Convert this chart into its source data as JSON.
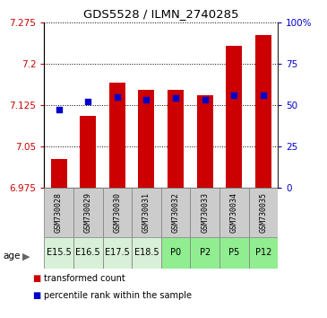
{
  "title": "GDS5528 / ILMN_2740285",
  "samples": [
    "GSM730028",
    "GSM730029",
    "GSM730030",
    "GSM730031",
    "GSM730032",
    "GSM730033",
    "GSM730034",
    "GSM730035"
  ],
  "ages": [
    "E15.5",
    "E16.5",
    "E17.5",
    "E18.5",
    "P0",
    "P2",
    "P5",
    "P12"
  ],
  "age_bg_colors": [
    "#d8f0d8",
    "#d8f0d8",
    "#d8f0d8",
    "#d8f0d8",
    "#90ee90",
    "#90ee90",
    "#90ee90",
    "#90ee90"
  ],
  "sample_bg_color": "#cccccc",
  "red_values": [
    7.027,
    7.105,
    7.165,
    7.152,
    7.152,
    7.142,
    7.232,
    7.252
  ],
  "blue_values": [
    47,
    52,
    55,
    53,
    54,
    53,
    56,
    56
  ],
  "ylim_left": [
    6.975,
    7.275
  ],
  "ylim_right": [
    0,
    100
  ],
  "yticks_left": [
    6.975,
    7.05,
    7.125,
    7.2,
    7.275
  ],
  "ytick_labels_left": [
    "6.975",
    "7.05",
    "7.125",
    "7.2",
    "7.275"
  ],
  "yticks_right": [
    0,
    25,
    50,
    75,
    100
  ],
  "ytick_labels_right": [
    "0",
    "25",
    "50",
    "75",
    "100%"
  ],
  "bar_color": "#cc0000",
  "dot_color": "#0000cc",
  "bar_width": 0.55,
  "left_axis_color": "#cc0000",
  "right_axis_color": "#0000cc",
  "age_label": "age",
  "legend_labels": [
    "transformed count",
    "percentile rank within the sample"
  ]
}
